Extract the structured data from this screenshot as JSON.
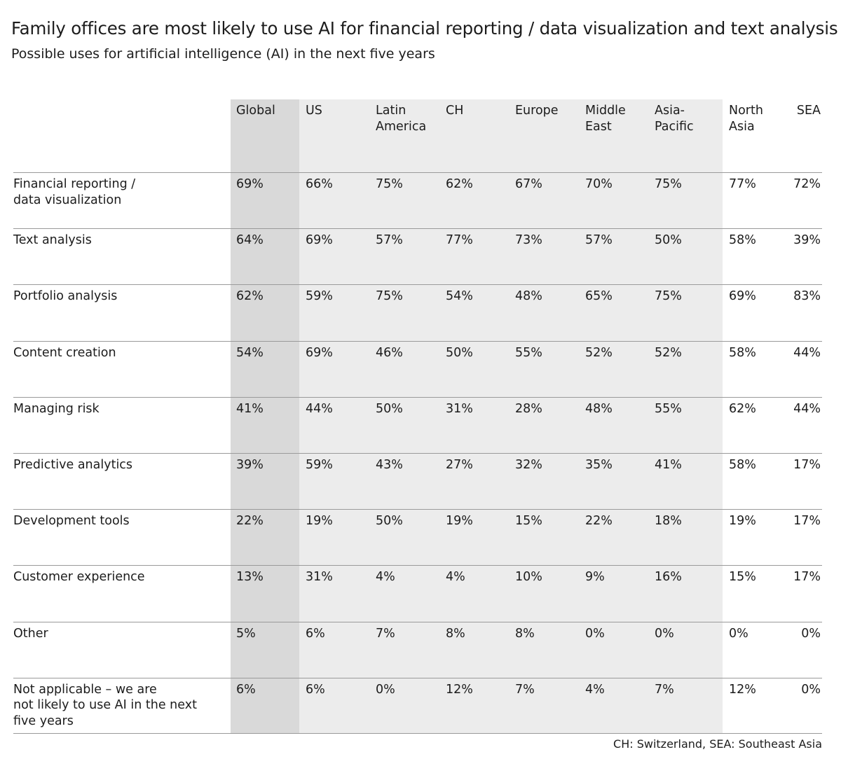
{
  "title": "Family offices are most likely to use AI for financial reporting / data visualization and text analysis",
  "subtitle": "Possible uses for artificial intelligence (AI) in the next five years",
  "footnote": "CH: Switzerland, SEA: Southeast Asia",
  "colors": {
    "global_band": "#d9d9d9",
    "regional_band": "#ececec",
    "rule": "#9a9a9a"
  },
  "chart_data": {
    "type": "table",
    "columns": [
      "Global",
      "US",
      "Latin America",
      "CH",
      "Europe",
      "Middle East",
      "Asia-Pacific",
      "North Asia",
      "SEA"
    ],
    "column_lines": [
      [
        "Global"
      ],
      [
        "US"
      ],
      [
        "Latin",
        "America"
      ],
      [
        "CH"
      ],
      [
        "Europe"
      ],
      [
        "Middle",
        "East"
      ],
      [
        "Asia-",
        "Pacific"
      ],
      [
        "North",
        "Asia"
      ],
      [
        "SEA"
      ]
    ],
    "rows": [
      {
        "label": "Financial reporting / data visualization",
        "label_lines": [
          "Financial reporting /",
          "data visualization"
        ],
        "values": [
          "69%",
          "66%",
          "75%",
          "62%",
          "67%",
          "70%",
          "75%",
          "77%",
          "72%"
        ]
      },
      {
        "label": "Text analysis",
        "label_lines": [
          "Text analysis"
        ],
        "values": [
          "64%",
          "69%",
          "57%",
          "77%",
          "73%",
          "57%",
          "50%",
          "58%",
          "39%"
        ]
      },
      {
        "label": "Portfolio analysis",
        "label_lines": [
          "Portfolio analysis"
        ],
        "values": [
          "62%",
          "59%",
          "75%",
          "54%",
          "48%",
          "65%",
          "75%",
          "69%",
          "83%"
        ]
      },
      {
        "label": "Content creation",
        "label_lines": [
          "Content creation"
        ],
        "values": [
          "54%",
          "69%",
          "46%",
          "50%",
          "55%",
          "52%",
          "52%",
          "58%",
          "44%"
        ]
      },
      {
        "label": "Managing risk",
        "label_lines": [
          "Managing risk"
        ],
        "values": [
          "41%",
          "44%",
          "50%",
          "31%",
          "28%",
          "48%",
          "55%",
          "62%",
          "44%"
        ]
      },
      {
        "label": "Predictive analytics",
        "label_lines": [
          "Predictive analytics"
        ],
        "values": [
          "39%",
          "59%",
          "43%",
          "27%",
          "32%",
          "35%",
          "41%",
          "58%",
          "17%"
        ]
      },
      {
        "label": "Development tools",
        "label_lines": [
          "Development tools"
        ],
        "values": [
          "22%",
          "19%",
          "50%",
          "19%",
          "15%",
          "22%",
          "18%",
          "19%",
          "17%"
        ]
      },
      {
        "label": "Customer experience",
        "label_lines": [
          "Customer experience"
        ],
        "values": [
          "13%",
          "31%",
          "4%",
          "4%",
          "10%",
          "9%",
          "16%",
          "15%",
          "17%"
        ]
      },
      {
        "label": "Other",
        "label_lines": [
          "Other"
        ],
        "values": [
          "5%",
          "6%",
          "7%",
          "8%",
          "8%",
          "0%",
          "0%",
          "0%",
          "0%"
        ]
      },
      {
        "label": "Not applicable – we are not likely to use AI in the next five years",
        "label_lines": [
          "Not applicable – we are",
          "not likely to use AI in the next",
          "five years"
        ],
        "values": [
          "6%",
          "6%",
          "0%",
          "12%",
          "7%",
          "4%",
          "7%",
          "12%",
          "0%"
        ]
      }
    ]
  }
}
